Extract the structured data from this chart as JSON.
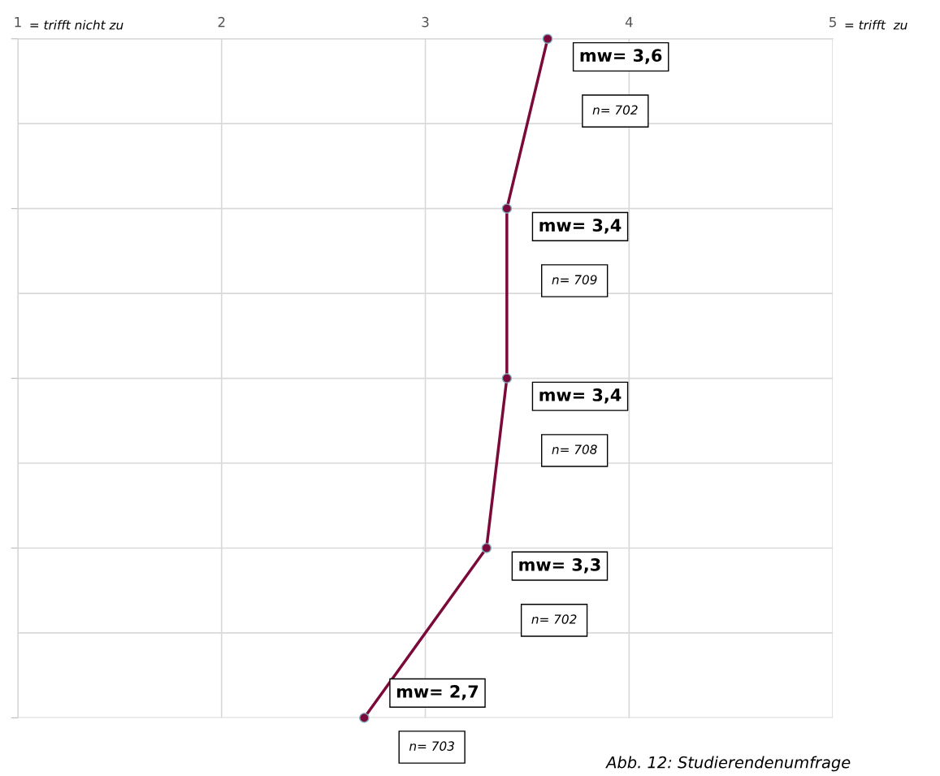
{
  "chart_data": {
    "type": "line",
    "orientation": "horizontal",
    "categories": [
      null,
      null,
      null,
      null,
      null
    ],
    "series": [
      {
        "color": "#7b0a3a",
        "values": [
          3.6,
          3.4,
          3.4,
          3.3,
          2.7
        ],
        "value_labels": [
          "mw= 3,6",
          "mw= 3,4",
          "mw= 3,4",
          "mw= 3,3",
          "mw= 2,7"
        ]
      }
    ],
    "xlim": [
      1,
      5
    ],
    "xticks": [
      1,
      2,
      3,
      4,
      5
    ],
    "grid": true,
    "marker": "circle",
    "line_style": "solid",
    "legend": false,
    "annotations": [
      "= trifft nicht zu",
      "= trifft  zu",
      "n= 702",
      "n= 709",
      "n= 708",
      "n= 702",
      "n= 703",
      "Abb. 12: Studierendenumfrage"
    ]
  }
}
